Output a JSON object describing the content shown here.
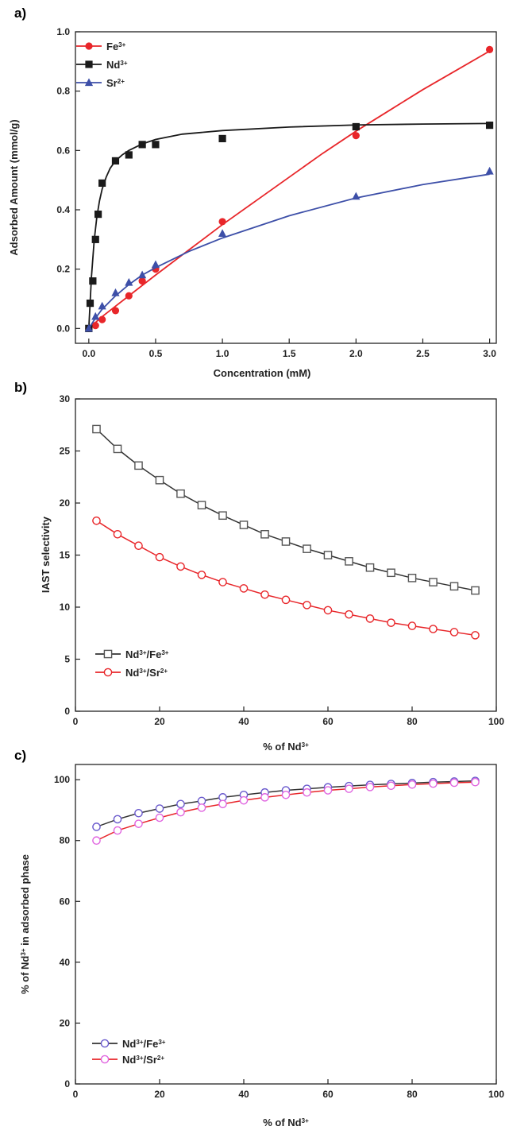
{
  "chart_data": [
    {
      "panel_label": "a)",
      "type": "scatter",
      "xlabel": "Concentration (mM)",
      "ylabel": "Adsorbed Amount (mmol/g)",
      "xlim": [
        -0.1,
        3.05
      ],
      "ylim": [
        -0.05,
        1.0
      ],
      "xticks": [
        0.0,
        0.5,
        1.0,
        1.5,
        2.0,
        2.5,
        3.0
      ],
      "xtick_labels": [
        "0.0",
        "0.5",
        "1.0",
        "1.5",
        "2.0",
        "2.5",
        "3.0"
      ],
      "yticks": [
        0.0,
        0.2,
        0.4,
        0.6,
        0.8,
        1.0
      ],
      "ytick_labels": [
        "0.0",
        "0.2",
        "0.4",
        "0.6",
        "0.8",
        "1.0"
      ],
      "legend_position": "top-left",
      "series": [
        {
          "name": "Fe³⁺",
          "color": "#e8262a",
          "marker": "circle",
          "x": [
            0.0,
            0.05,
            0.1,
            0.2,
            0.3,
            0.4,
            0.5,
            1.0,
            2.0,
            3.0
          ],
          "y": [
            0.0,
            0.01,
            0.03,
            0.06,
            0.11,
            0.16,
            0.2,
            0.36,
            0.65,
            0.94
          ],
          "fit": {
            "x": [
              0.0,
              0.1,
              0.2,
              0.3,
              0.5,
              0.75,
              1.0,
              1.25,
              1.5,
              1.75,
              2.0,
              2.25,
              2.5,
              2.75,
              3.0
            ],
            "y": [
              0.0,
              0.04,
              0.075,
              0.11,
              0.18,
              0.265,
              0.35,
              0.43,
              0.51,
              0.59,
              0.665,
              0.735,
              0.805,
              0.87,
              0.935
            ]
          }
        },
        {
          "name": "Nd³⁺",
          "color": "#1a1a1a",
          "marker": "square",
          "x": [
            0.0,
            0.01,
            0.03,
            0.05,
            0.07,
            0.1,
            0.2,
            0.3,
            0.4,
            0.5,
            1.0,
            2.0,
            3.0
          ],
          "y": [
            0.0,
            0.085,
            0.16,
            0.3,
            0.385,
            0.49,
            0.565,
            0.585,
            0.62,
            0.62,
            0.64,
            0.68,
            0.685
          ],
          "fit": {
            "x": [
              0.0,
              0.02,
              0.04,
              0.06,
              0.08,
              0.1,
              0.13,
              0.16,
              0.2,
              0.25,
              0.3,
              0.4,
              0.5,
              0.7,
              1.0,
              1.5,
              2.0,
              2.5,
              3.0
            ],
            "y": [
              0.0,
              0.175,
              0.295,
              0.375,
              0.43,
              0.47,
              0.51,
              0.54,
              0.565,
              0.585,
              0.6,
              0.622,
              0.637,
              0.655,
              0.667,
              0.679,
              0.686,
              0.689,
              0.691
            ]
          }
        },
        {
          "name": "Sr²⁺",
          "color": "#3d4fa8",
          "marker": "triangle",
          "x": [
            0.0,
            0.05,
            0.1,
            0.2,
            0.3,
            0.4,
            0.5,
            1.0,
            2.0,
            3.0
          ],
          "y": [
            0.0,
            0.04,
            0.075,
            0.12,
            0.155,
            0.18,
            0.215,
            0.32,
            0.445,
            0.53
          ],
          "fit": {
            "x": [
              0.0,
              0.05,
              0.1,
              0.2,
              0.3,
              0.4,
              0.5,
              0.75,
              1.0,
              1.5,
              2.0,
              2.5,
              3.0
            ],
            "y": [
              0.0,
              0.035,
              0.065,
              0.11,
              0.148,
              0.18,
              0.205,
              0.26,
              0.305,
              0.38,
              0.44,
              0.485,
              0.52
            ]
          }
        }
      ]
    },
    {
      "panel_label": "b)",
      "type": "line",
      "xlabel": "% of Nd³⁺",
      "ylabel": "IAST selectivity",
      "xlim": [
        0,
        100
      ],
      "ylim": [
        0,
        30
      ],
      "xticks": [
        0,
        20,
        40,
        60,
        80,
        100
      ],
      "xtick_labels": [
        "0",
        "20",
        "40",
        "60",
        "80",
        "100"
      ],
      "yticks": [
        0,
        5,
        10,
        15,
        20,
        25,
        30
      ],
      "ytick_labels": [
        "0",
        "5",
        "10",
        "15",
        "20",
        "25",
        "30"
      ],
      "legend_position": "bottom-left",
      "x": [
        5,
        10,
        15,
        20,
        25,
        30,
        35,
        40,
        45,
        50,
        55,
        60,
        65,
        70,
        75,
        80,
        85,
        90,
        95
      ],
      "series": [
        {
          "name": "Nd³⁺/Fe³⁺",
          "line_color": "#333333",
          "marker_color": "#555555",
          "marker": "open-square",
          "values": [
            27.1,
            25.2,
            23.6,
            22.2,
            20.9,
            19.8,
            18.8,
            17.9,
            17.0,
            16.3,
            15.6,
            15.0,
            14.4,
            13.8,
            13.3,
            12.8,
            12.4,
            12.0,
            11.6
          ]
        },
        {
          "name": "Nd³⁺/Sr²⁺",
          "line_color": "#e8262a",
          "marker_color": "#e8262a",
          "marker": "open-circle",
          "values": [
            18.3,
            17.0,
            15.9,
            14.8,
            13.9,
            13.1,
            12.4,
            11.8,
            11.2,
            10.7,
            10.2,
            9.7,
            9.3,
            8.9,
            8.5,
            8.2,
            7.9,
            7.6,
            7.3
          ]
        }
      ]
    },
    {
      "panel_label": "c)",
      "type": "line",
      "xlabel": "% of Nd³⁺",
      "ylabel": "% of Nd³⁺ in adsorbed phase",
      "xlim": [
        0,
        100
      ],
      "ylim": [
        0,
        105
      ],
      "xticks": [
        0,
        20,
        40,
        60,
        80,
        100
      ],
      "xtick_labels": [
        "0",
        "20",
        "40",
        "60",
        "80",
        "100"
      ],
      "yticks": [
        0,
        20,
        40,
        60,
        80,
        100
      ],
      "ytick_labels": [
        "0",
        "20",
        "40",
        "60",
        "80",
        "100"
      ],
      "legend_position": "bottom-left",
      "x": [
        5,
        10,
        15,
        20,
        25,
        30,
        35,
        40,
        45,
        50,
        55,
        60,
        65,
        70,
        75,
        80,
        85,
        90,
        95
      ],
      "series": [
        {
          "name": "Nd³⁺/Fe³⁺",
          "line_color": "#333333",
          "marker_color": "#6a5acd",
          "marker": "open-circle",
          "values": [
            84.5,
            87.0,
            89.0,
            90.5,
            92.0,
            93.0,
            94.2,
            95.0,
            95.8,
            96.5,
            97.0,
            97.5,
            97.9,
            98.3,
            98.6,
            98.9,
            99.2,
            99.4,
            99.6
          ]
        },
        {
          "name": "Nd³⁺/Sr²⁺",
          "line_color": "#e8262a",
          "marker_color": "#e066e0",
          "marker": "open-circle",
          "values": [
            80.0,
            83.3,
            85.5,
            87.5,
            89.3,
            90.8,
            92.0,
            93.2,
            94.2,
            95.0,
            95.8,
            96.5,
            97.0,
            97.6,
            98.0,
            98.4,
            98.7,
            99.0,
            99.2
          ]
        }
      ]
    }
  ]
}
